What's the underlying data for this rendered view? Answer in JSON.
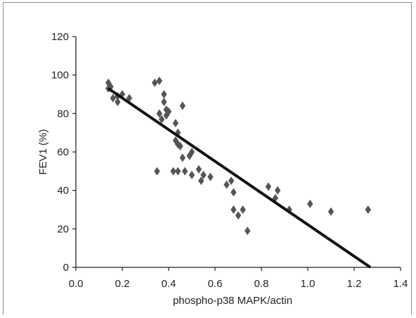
{
  "chart_data": {
    "type": "scatter",
    "title": "",
    "xlabel": "phospho-p38 MAPK/actin",
    "ylabel": "FEV1 (%)",
    "xlim": [
      0.0,
      1.4
    ],
    "ylim": [
      0,
      120
    ],
    "x_ticks": [
      "0.0",
      "0.2",
      "0.4",
      "0.6",
      "0.8",
      "1.0",
      "1.2",
      "1.4"
    ],
    "y_ticks": [
      "0",
      "20",
      "40",
      "60",
      "80",
      "100",
      "120"
    ],
    "grid": false,
    "legend": "none",
    "marker": "diamond",
    "marker_color": "#555555",
    "line_color": "#111111",
    "points": [
      {
        "x": 0.14,
        "y": 96
      },
      {
        "x": 0.14,
        "y": 93
      },
      {
        "x": 0.15,
        "y": 94
      },
      {
        "x": 0.16,
        "y": 88
      },
      {
        "x": 0.18,
        "y": 86
      },
      {
        "x": 0.18,
        "y": 89
      },
      {
        "x": 0.2,
        "y": 90
      },
      {
        "x": 0.23,
        "y": 88
      },
      {
        "x": 0.34,
        "y": 96
      },
      {
        "x": 0.36,
        "y": 97
      },
      {
        "x": 0.36,
        "y": 80
      },
      {
        "x": 0.38,
        "y": 90
      },
      {
        "x": 0.38,
        "y": 86
      },
      {
        "x": 0.39,
        "y": 82
      },
      {
        "x": 0.39,
        "y": 79
      },
      {
        "x": 0.4,
        "y": 81
      },
      {
        "x": 0.37,
        "y": 77
      },
      {
        "x": 0.35,
        "y": 50
      },
      {
        "x": 0.42,
        "y": 50
      },
      {
        "x": 0.44,
        "y": 50
      },
      {
        "x": 0.43,
        "y": 75
      },
      {
        "x": 0.44,
        "y": 70
      },
      {
        "x": 0.43,
        "y": 66
      },
      {
        "x": 0.44,
        "y": 64
      },
      {
        "x": 0.45,
        "y": 63
      },
      {
        "x": 0.46,
        "y": 84
      },
      {
        "x": 0.46,
        "y": 57
      },
      {
        "x": 0.47,
        "y": 50
      },
      {
        "x": 0.49,
        "y": 58
      },
      {
        "x": 0.5,
        "y": 60
      },
      {
        "x": 0.5,
        "y": 48
      },
      {
        "x": 0.53,
        "y": 51
      },
      {
        "x": 0.54,
        "y": 45
      },
      {
        "x": 0.55,
        "y": 48
      },
      {
        "x": 0.58,
        "y": 47
      },
      {
        "x": 0.65,
        "y": 43
      },
      {
        "x": 0.67,
        "y": 45
      },
      {
        "x": 0.68,
        "y": 39
      },
      {
        "x": 0.68,
        "y": 30
      },
      {
        "x": 0.7,
        "y": 27
      },
      {
        "x": 0.72,
        "y": 30
      },
      {
        "x": 0.74,
        "y": 19
      },
      {
        "x": 0.83,
        "y": 42
      },
      {
        "x": 0.86,
        "y": 36
      },
      {
        "x": 0.87,
        "y": 40
      },
      {
        "x": 0.92,
        "y": 30
      },
      {
        "x": 1.01,
        "y": 33
      },
      {
        "x": 1.1,
        "y": 29
      },
      {
        "x": 1.26,
        "y": 30
      }
    ],
    "trendline": {
      "x": [
        0.14,
        1.27
      ],
      "y": [
        93,
        0
      ]
    }
  }
}
